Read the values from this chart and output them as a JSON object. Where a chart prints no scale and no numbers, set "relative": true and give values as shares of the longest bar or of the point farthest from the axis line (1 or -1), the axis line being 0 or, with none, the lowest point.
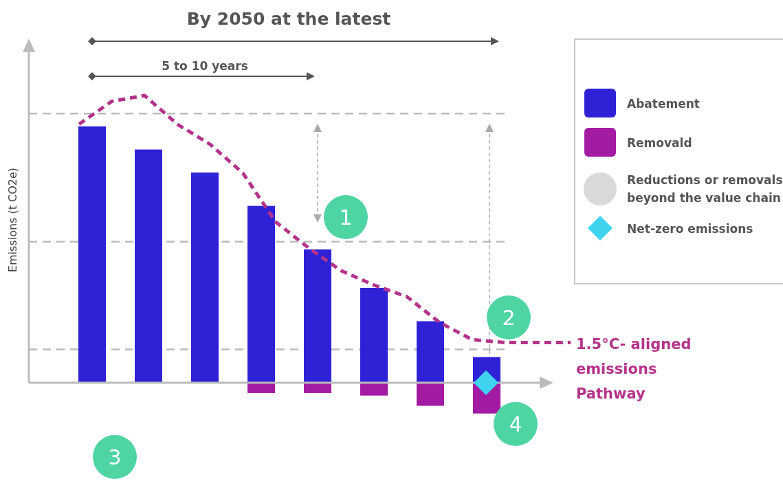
{
  "chart_data": [
    {
      "type": "bar",
      "relative": true,
      "stacked": true,
      "ylabel": "Emissions (t CO2e)",
      "categories": [
        null,
        null,
        null,
        null,
        null,
        null,
        null,
        null
      ],
      "legend": "top right",
      "series": [
        {
          "name": "Abatement",
          "color": "#2f22d6",
          "values": [
            1,
            0.91,
            0.82,
            0.69,
            0.52,
            0.37,
            0.24,
            0.1
          ]
        },
        {
          "name": "Removald",
          "color": "#a31aa3",
          "values": [
            0,
            0,
            0,
            -0.04,
            -0.04,
            -0.05,
            -0.09,
            -0.12
          ]
        }
      ],
      "ref_lines": [
        {
          "axis": "y",
          "value": 1.05,
          "color": "#bbbbbb",
          "line_style": "dashed"
        },
        {
          "axis": "y",
          "value": 0.55,
          "color": "#bbbbbb",
          "line_style": "dashed"
        },
        {
          "axis": "y",
          "value": 0.13,
          "color": "#bbbbbb",
          "line_style": "dashed"
        }
      ],
      "annotations": [
        "By 2050 at the latest",
        "5 to 10 years",
        "1",
        "2",
        "3",
        "4"
      ]
    },
    {
      "type": "line",
      "relative": true,
      "line_style": "dashed",
      "categories": [
        null,
        null,
        null,
        null,
        null,
        null,
        null,
        null,
        null,
        null,
        null,
        null,
        null,
        null,
        null,
        null
      ],
      "series": [
        {
          "name": "1.5°C- aligned emissions Pathway",
          "color": "#b5338a",
          "values": [
            0.9,
            0.98,
            1,
            0.9,
            0.83,
            0.73,
            0.56,
            0.47,
            0.39,
            0.34,
            0.3,
            0.21,
            0.15,
            0.14,
            0.14,
            0.14
          ]
        }
      ]
    },
    {
      "type": "other",
      "annotations": [
        "Reductions or removals beyond the value chain",
        "Net-zero emissions"
      ]
    }
  ]
}
